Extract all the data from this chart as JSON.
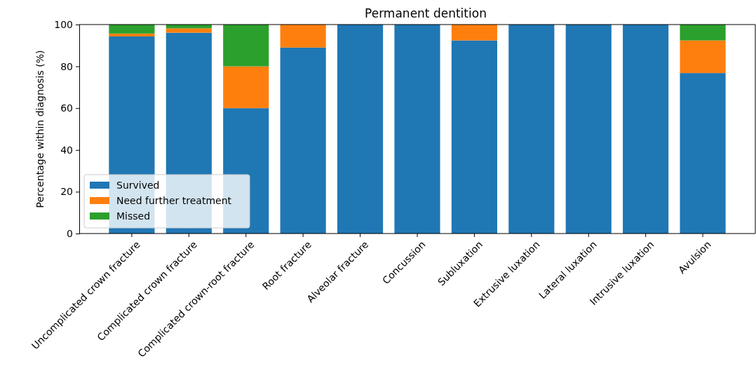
{
  "chart_data": {
    "type": "bar",
    "title": "Permanent dentition",
    "ylabel": "Percentage within diagnosis (%)",
    "stacked": true,
    "legend": "bottom left",
    "grid": false,
    "categories": [
      "Uncomplicated crown fracture",
      "Complicated crown fracture",
      "Complicated crown-root fracture",
      "Root fracture",
      "Alveolar fracture",
      "Concussion",
      "Subluxation",
      "Extrusive luxation",
      "Lateral luxation",
      "Intrusive luxation",
      "Avulsion"
    ],
    "series": [
      {
        "name": "Survived",
        "color": "#1f77b4",
        "values": [
          94.3,
          96.1,
          60,
          89,
          100,
          100,
          92.4,
          100,
          100,
          100,
          76.8
        ]
      },
      {
        "name": "Need further treatment",
        "color": "#ff7f0e",
        "values": [
          1.4,
          2.1,
          20,
          11,
          0,
          0,
          7.6,
          0,
          0,
          0,
          15.6
        ]
      },
      {
        "name": "Missed",
        "color": "#2ca02c",
        "values": [
          4.3,
          1.8,
          20,
          0,
          0,
          0,
          0,
          0,
          0,
          0,
          7.6
        ]
      }
    ],
    "ylim": [
      0,
      100
    ],
    "yticks": [
      0,
      20,
      40,
      60,
      80,
      100
    ]
  }
}
